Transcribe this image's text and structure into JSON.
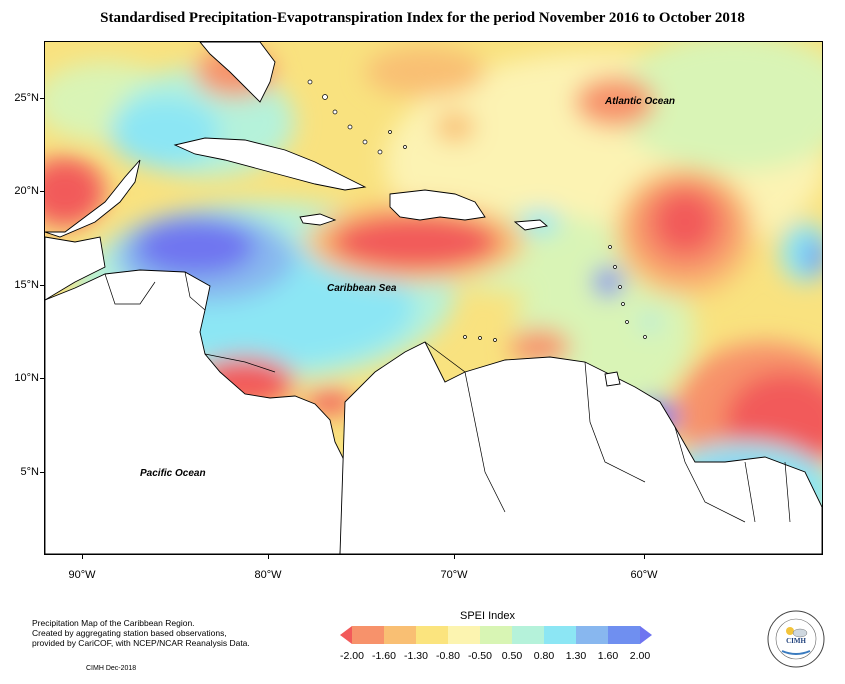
{
  "title": "Standardised Precipitation-Evapotranspiration Index for the period November 2016 to October 2018",
  "map": {
    "labels": {
      "atlantic": "Atlantic Ocean",
      "caribbean": "Caribbean Sea",
      "pacific": "Pacific Ocean"
    },
    "lat_ticks": [
      "25°N",
      "20°N",
      "15°N",
      "10°N",
      "5°N"
    ],
    "lon_ticks": [
      "90°W",
      "80°W",
      "70°W",
      "60°W"
    ]
  },
  "legend": {
    "title": "SPEI Index",
    "values": [
      "-2.00",
      "-1.60",
      "-1.30",
      "-0.80",
      "-0.50",
      "0.50",
      "0.80",
      "1.30",
      "1.60",
      "2.00"
    ],
    "colors": [
      "#f25a5a",
      "#f7926b",
      "#f9bf73",
      "#fbe47e",
      "#fcf4b0",
      "#d8f5b4",
      "#b5f2da",
      "#8ce6f4",
      "#88b7ef",
      "#6f8ff0",
      "#6f74f0"
    ]
  },
  "footer": {
    "line1": "Precipitation Map of the Caribbean Region.",
    "line2": "Created by aggregating station based observations,",
    "line3": "provided by CariCOF, with NCEP/NCAR Reanalysis Data.",
    "credit": "CIMH Dec-2018"
  },
  "logo": {
    "text": "CIMH"
  }
}
